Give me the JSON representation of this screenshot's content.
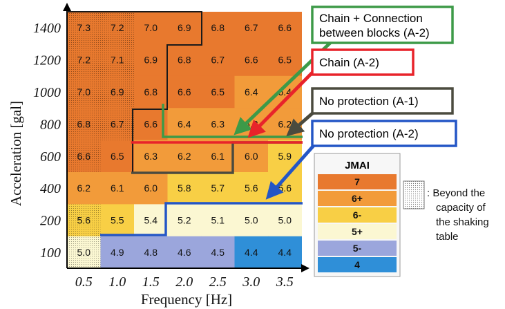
{
  "chart_data": {
    "type": "heatmap",
    "xlabel": "Frequency [Hz]",
    "ylabel": "Acceleration [gal]",
    "x_ticks": [
      "0.5",
      "1.0",
      "1.5",
      "2.0",
      "2.5",
      "3.0",
      "3.5"
    ],
    "y_ticks": [
      "1400",
      "1200",
      "1000",
      "800",
      "600",
      "400",
      "200",
      "100"
    ],
    "cells": [
      [
        "7.3",
        "7.2",
        "7.0",
        "6.9",
        "6.8",
        "6.7",
        "6.6"
      ],
      [
        "7.2",
        "7.1",
        "6.9",
        "6.8",
        "6.7",
        "6.6",
        "6.5"
      ],
      [
        "7.0",
        "6.9",
        "6.8",
        "6.6",
        "6.5",
        "6.4",
        "6.4"
      ],
      [
        "6.8",
        "6.7",
        "6.6",
        "6.4",
        "6.3",
        "6.2",
        "6.2"
      ],
      [
        "6.6",
        "6.5",
        "6.3",
        "6.2",
        "6.1",
        "6.0",
        "5.9"
      ],
      [
        "6.2",
        "6.1",
        "6.0",
        "5.8",
        "5.7",
        "5.6",
        "5.6"
      ],
      [
        "5.6",
        "5.5",
        "5.4",
        "5.2",
        "5.1",
        "5.0",
        "5.0"
      ],
      [
        "5.0",
        "4.9",
        "4.8",
        "4.6",
        "4.5",
        "4.4",
        "4.4"
      ]
    ],
    "beyond_capacity": [
      [
        1,
        1,
        0,
        0,
        0,
        0,
        0
      ],
      [
        1,
        1,
        0,
        0,
        0,
        0,
        0
      ],
      [
        1,
        1,
        0,
        0,
        0,
        0,
        0
      ],
      [
        1,
        1,
        0,
        0,
        0,
        0,
        0
      ],
      [
        1,
        0,
        0,
        0,
        0,
        0,
        0
      ],
      [
        0,
        0,
        0,
        0,
        0,
        0,
        0
      ],
      [
        1,
        0,
        0,
        0,
        0,
        0,
        0
      ],
      [
        1,
        0,
        0,
        0,
        0,
        0,
        0
      ]
    ],
    "jmai_legend": {
      "title": "JMAI",
      "items": [
        {
          "label": "7",
          "color": "#e8792e"
        },
        {
          "label": "6+",
          "color": "#f29b3a"
        },
        {
          "label": "6-",
          "color": "#f8cf45"
        },
        {
          "label": "5+",
          "color": "#fbf7d2"
        },
        {
          "label": "5-",
          "color": "#9ba6dc"
        },
        {
          "label": "4",
          "color": "#2f8fd8"
        }
      ]
    },
    "beyond_label": ": Beyond the capacity of the shaking table",
    "series": [
      {
        "name": "Chain + Connection between blocks (A-2)",
        "color": "#3d9a48"
      },
      {
        "name": "Chain (A-2)",
        "color": "#e8232a"
      },
      {
        "name": "No protection (A-1)",
        "color": "#4b4b3f"
      },
      {
        "name": "No protection (A-2)",
        "color": "#2456c6"
      }
    ]
  }
}
